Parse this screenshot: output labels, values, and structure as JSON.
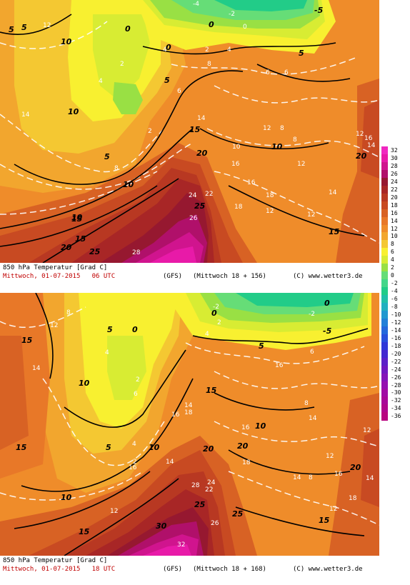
{
  "colors": {
    "t_minus6": "#22cc88",
    "t_minus2": "#66dd77",
    "t0": "#99e044",
    "t2": "#d8ec33",
    "t4": "#f8f030",
    "t6": "#f4c832",
    "t8": "#f2a62e",
    "t10": "#ef8c2a",
    "t12": "#e87828",
    "t14": "#d86224",
    "t16": "#c84a22",
    "t18": "#b83822",
    "t20": "#a82626",
    "t22": "#961830",
    "t24": "#b0106a",
    "t26": "#d0148e",
    "t28": "#e81aa8",
    "t30": "#f028c0"
  },
  "panels": [
    {
      "caption_title": "850 hPa Temperatur [Grad C]",
      "caption_time": "Mittwoch, 01-07-2015   06 UTC",
      "caption_model": "(GFS)",
      "caption_run": "(Mittwoch 18 + 156)",
      "caption_copyright": "(C) www.wetter3.de",
      "contour_labels_white": [
        "12",
        "14",
        "2",
        "4",
        "8",
        "6",
        "12",
        "8",
        "12",
        "16",
        "14",
        "12",
        "18",
        "12",
        "28",
        "26",
        "22",
        "24",
        "-2",
        "-4",
        "0",
        "2",
        "4",
        "6",
        "8",
        "16",
        "14",
        "12",
        "10",
        "14",
        "16",
        "18",
        "8",
        "4",
        "2",
        "6"
      ],
      "contour_labels_black": [
        "5",
        "10",
        "5",
        "10",
        "15",
        "20",
        "25",
        "10",
        "15",
        "20",
        "25",
        "0",
        "5",
        "10",
        "15",
        "0",
        "-5",
        "5",
        "10",
        "15",
        "20",
        "0",
        "5"
      ]
    },
    {
      "caption_title": "850 hPa Temperatur [Grad C]",
      "caption_time": "Mittwoch, 01-07-2015   18 UTC",
      "caption_model": "(GFS)",
      "caption_run": "(Mittwoch 18 + 168)",
      "caption_copyright": "(C) www.wetter3.de",
      "contour_labels_white": [
        "8",
        "12",
        "14",
        "4",
        "2",
        "6",
        "4",
        "2",
        "14",
        "16",
        "18",
        "16",
        "14",
        "12",
        "14",
        "8",
        "12",
        "16",
        "18",
        "16",
        "14",
        "28",
        "26",
        "32",
        "22",
        "24",
        "-2",
        "-2",
        "2",
        "4",
        "6",
        "8",
        "12",
        "16",
        "14",
        "18",
        "12"
      ],
      "contour_labels_black": [
        "15",
        "10",
        "5",
        "10",
        "15",
        "0",
        "5",
        "10",
        "15",
        "20",
        "25",
        "30",
        "15",
        "20",
        "25",
        "0",
        "-5",
        "5",
        "10",
        "15",
        "20",
        "0"
      ]
    }
  ],
  "legend": {
    "title": "",
    "labels": [
      "32",
      "30",
      "28",
      "26",
      "24",
      "22",
      "20",
      "18",
      "16",
      "14",
      "12",
      "10",
      "8",
      "6",
      "4",
      "2",
      "0",
      "-2",
      "-4",
      "-6",
      "-8",
      "-10",
      "-12",
      "-14",
      "-16",
      "-18",
      "-20",
      "-22",
      "-24",
      "-26",
      "-28",
      "-30",
      "-32",
      "-34",
      "-36"
    ],
    "colors": [
      "#f028c0",
      "#e81aa8",
      "#d0148e",
      "#b0106a",
      "#961830",
      "#a82626",
      "#b83822",
      "#c84a22",
      "#d86224",
      "#e87828",
      "#ef8c2a",
      "#f2a62e",
      "#f4c832",
      "#f8f030",
      "#d8ec33",
      "#99e044",
      "#66dd77",
      "#44d68a",
      "#22cc88",
      "#22c0a8",
      "#22b0c0",
      "#2298d0",
      "#2280d8",
      "#2468dc",
      "#2850dc",
      "#3038d8",
      "#4428d0",
      "#5c20c8",
      "#7018c0",
      "#8414b8",
      "#9410b0",
      "#a00ca4",
      "#a80898",
      "#b0068c",
      "#b80480"
    ]
  }
}
